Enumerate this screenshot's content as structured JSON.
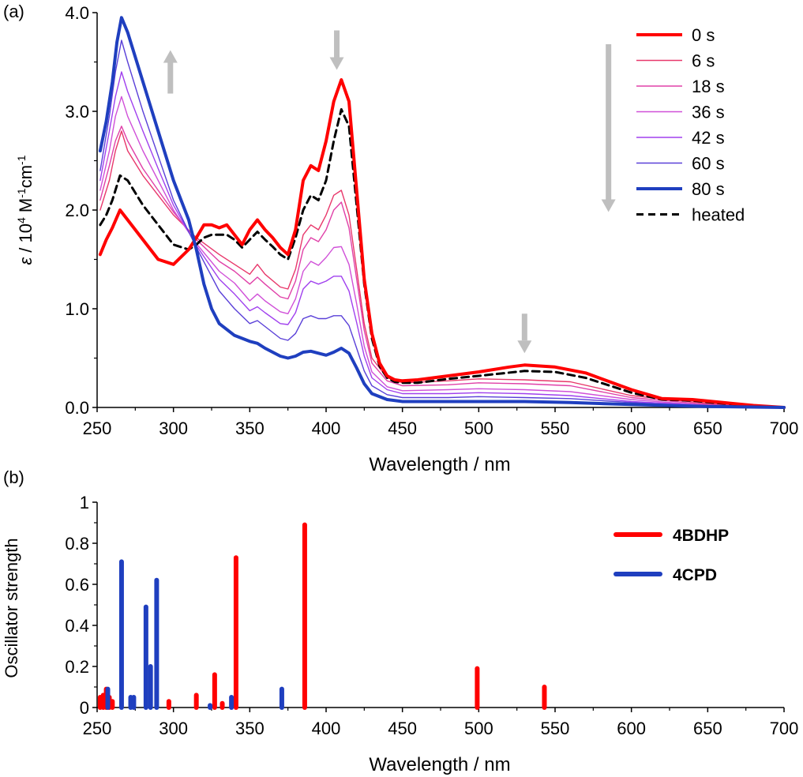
{
  "chart_data": [
    {
      "panel_label": "(a)",
      "type": "line",
      "xlabel": "Wavelength / nm",
      "ylabel": {
        "epsilon": "ε",
        "main": " / 10",
        "sup1": "4",
        "mid": " M",
        "sup2": "-1",
        "tail": "cm",
        "sup3": "-1"
      },
      "xlim": [
        250,
        700
      ],
      "ylim": [
        0,
        4.0
      ],
      "xticks": [
        "250",
        "300",
        "350",
        "400",
        "450",
        "500",
        "550",
        "600",
        "650",
        "700"
      ],
      "yticks": [
        "0.0",
        "1.0",
        "2.0",
        "3.0",
        "4.0"
      ],
      "legend_position": "top-right",
      "colors": {
        "0 s": "#ff0000",
        "6 s": "#e8386b",
        "18 s": "#e040a8",
        "36 s": "#d050d8",
        "42 s": "#a040ee",
        "60 s": "#5a40d8",
        "80 s": "#1f3fbf",
        "heated": "#000000",
        "arrow": "#bfbfbf"
      },
      "series": [
        {
          "name": "0 s",
          "style": "solid",
          "width": 4,
          "x": [
            252,
            256,
            260,
            265,
            270,
            280,
            290,
            300,
            310,
            315,
            320,
            325,
            330,
            335,
            340,
            345,
            350,
            355,
            360,
            365,
            370,
            375,
            380,
            385,
            390,
            395,
            400,
            405,
            410,
            415,
            420,
            425,
            430,
            435,
            440,
            445,
            450,
            460,
            480,
            500,
            520,
            530,
            550,
            570,
            600,
            620,
            640,
            660,
            680,
            700
          ],
          "y": [
            1.55,
            1.7,
            1.82,
            2.0,
            1.9,
            1.7,
            1.5,
            1.45,
            1.6,
            1.72,
            1.85,
            1.85,
            1.82,
            1.85,
            1.75,
            1.65,
            1.8,
            1.9,
            1.8,
            1.72,
            1.62,
            1.55,
            1.8,
            2.3,
            2.45,
            2.4,
            2.7,
            3.1,
            3.32,
            3.1,
            2.2,
            1.3,
            0.75,
            0.45,
            0.32,
            0.28,
            0.27,
            0.28,
            0.32,
            0.36,
            0.41,
            0.43,
            0.41,
            0.35,
            0.18,
            0.09,
            0.08,
            0.05,
            0.02,
            0.0
          ]
        },
        {
          "name": "6 s",
          "style": "solid",
          "width": 1.4,
          "x": [
            252,
            258,
            262,
            266,
            270,
            280,
            290,
            300,
            315,
            330,
            340,
            350,
            355,
            360,
            370,
            375,
            380,
            385,
            390,
            395,
            400,
            405,
            410,
            415,
            420,
            425,
            430,
            440,
            450,
            480,
            500,
            530,
            560,
            600,
            650,
            700
          ],
          "y": [
            2.0,
            2.3,
            2.6,
            2.8,
            2.6,
            2.35,
            2.15,
            1.95,
            1.72,
            1.55,
            1.45,
            1.35,
            1.45,
            1.35,
            1.22,
            1.2,
            1.4,
            1.75,
            1.85,
            1.8,
            1.95,
            2.15,
            2.2,
            1.95,
            1.4,
            0.85,
            0.5,
            0.3,
            0.25,
            0.27,
            0.29,
            0.28,
            0.26,
            0.12,
            0.04,
            0.0
          ]
        },
        {
          "name": "18 s",
          "style": "solid",
          "width": 1.4,
          "x": [
            252,
            258,
            262,
            266,
            270,
            280,
            290,
            300,
            315,
            330,
            340,
            350,
            355,
            360,
            370,
            375,
            380,
            385,
            390,
            395,
            400,
            405,
            410,
            415,
            420,
            425,
            430,
            440,
            450,
            480,
            500,
            530,
            560,
            600,
            650,
            700
          ],
          "y": [
            2.1,
            2.45,
            2.7,
            2.85,
            2.7,
            2.42,
            2.2,
            1.98,
            1.7,
            1.48,
            1.38,
            1.25,
            1.32,
            1.25,
            1.12,
            1.1,
            1.28,
            1.6,
            1.72,
            1.68,
            1.8,
            2.0,
            2.08,
            1.82,
            1.3,
            0.78,
            0.45,
            0.27,
            0.22,
            0.23,
            0.25,
            0.24,
            0.22,
            0.1,
            0.03,
            0.0
          ]
        },
        {
          "name": "36 s",
          "style": "solid",
          "width": 1.4,
          "x": [
            252,
            258,
            262,
            266,
            270,
            280,
            290,
            300,
            315,
            330,
            340,
            350,
            355,
            360,
            370,
            375,
            380,
            385,
            390,
            395,
            400,
            405,
            410,
            415,
            420,
            425,
            430,
            440,
            450,
            480,
            500,
            530,
            560,
            600,
            650,
            700
          ],
          "y": [
            2.2,
            2.6,
            2.95,
            3.15,
            2.95,
            2.6,
            2.3,
            2.0,
            1.66,
            1.38,
            1.26,
            1.08,
            1.15,
            1.08,
            0.97,
            0.95,
            1.1,
            1.38,
            1.48,
            1.44,
            1.52,
            1.62,
            1.63,
            1.45,
            1.05,
            0.62,
            0.36,
            0.21,
            0.17,
            0.18,
            0.19,
            0.18,
            0.16,
            0.08,
            0.02,
            0.0
          ]
        },
        {
          "name": "42 s",
          "style": "solid",
          "width": 1.4,
          "x": [
            252,
            258,
            262,
            266,
            270,
            280,
            290,
            300,
            315,
            330,
            340,
            350,
            355,
            360,
            370,
            375,
            380,
            385,
            390,
            395,
            400,
            405,
            410,
            415,
            420,
            425,
            430,
            440,
            450,
            480,
            500,
            530,
            560,
            600,
            650,
            700
          ],
          "y": [
            2.3,
            2.8,
            3.15,
            3.4,
            3.2,
            2.8,
            2.42,
            2.05,
            1.64,
            1.3,
            1.15,
            0.98,
            1.02,
            0.96,
            0.85,
            0.84,
            0.96,
            1.2,
            1.28,
            1.25,
            1.28,
            1.33,
            1.33,
            1.18,
            0.86,
            0.52,
            0.3,
            0.18,
            0.14,
            0.14,
            0.15,
            0.14,
            0.12,
            0.06,
            0.02,
            0.0
          ]
        },
        {
          "name": "60 s",
          "style": "solid",
          "width": 1.4,
          "x": [
            252,
            258,
            262,
            266,
            270,
            280,
            290,
            300,
            315,
            330,
            340,
            350,
            355,
            360,
            370,
            375,
            380,
            385,
            390,
            395,
            400,
            405,
            410,
            415,
            420,
            425,
            430,
            440,
            450,
            480,
            500,
            530,
            560,
            600,
            650,
            700
          ],
          "y": [
            2.4,
            2.95,
            3.4,
            3.72,
            3.5,
            3.0,
            2.55,
            2.1,
            1.62,
            1.18,
            1.0,
            0.85,
            0.88,
            0.82,
            0.7,
            0.68,
            0.75,
            0.9,
            0.93,
            0.9,
            0.9,
            0.93,
            0.93,
            0.83,
            0.6,
            0.37,
            0.22,
            0.13,
            0.1,
            0.1,
            0.11,
            0.1,
            0.09,
            0.05,
            0.01,
            0.0
          ]
        },
        {
          "name": "80 s",
          "style": "solid",
          "width": 4,
          "x": [
            252,
            256,
            260,
            263,
            266,
            270,
            280,
            290,
            300,
            310,
            315,
            320,
            325,
            330,
            340,
            350,
            355,
            360,
            370,
            375,
            380,
            385,
            390,
            395,
            400,
            405,
            410,
            415,
            420,
            425,
            430,
            440,
            450,
            480,
            500,
            530,
            560,
            600,
            650,
            700
          ],
          "y": [
            2.6,
            2.9,
            3.3,
            3.7,
            3.95,
            3.8,
            3.3,
            2.8,
            2.3,
            1.9,
            1.6,
            1.25,
            1.0,
            0.85,
            0.73,
            0.67,
            0.65,
            0.6,
            0.52,
            0.5,
            0.52,
            0.56,
            0.57,
            0.55,
            0.53,
            0.56,
            0.6,
            0.55,
            0.4,
            0.24,
            0.14,
            0.08,
            0.06,
            0.06,
            0.06,
            0.06,
            0.05,
            0.03,
            0.01,
            0.0
          ]
        },
        {
          "name": "heated",
          "style": "dashed",
          "width": 3,
          "x": [
            252,
            256,
            260,
            265,
            270,
            280,
            290,
            300,
            310,
            315,
            320,
            325,
            330,
            335,
            340,
            345,
            350,
            355,
            360,
            365,
            370,
            375,
            380,
            385,
            390,
            395,
            400,
            405,
            410,
            415,
            420,
            425,
            430,
            435,
            440,
            445,
            450,
            460,
            480,
            500,
            530,
            550,
            570,
            600,
            620,
            640,
            660,
            680,
            700
          ],
          "y": [
            1.85,
            1.95,
            2.1,
            2.35,
            2.3,
            2.05,
            1.85,
            1.65,
            1.6,
            1.65,
            1.72,
            1.75,
            1.75,
            1.75,
            1.7,
            1.62,
            1.7,
            1.78,
            1.7,
            1.63,
            1.55,
            1.5,
            1.72,
            2.0,
            2.15,
            2.1,
            2.3,
            2.7,
            3.02,
            2.85,
            2.05,
            1.25,
            0.7,
            0.42,
            0.3,
            0.26,
            0.25,
            0.25,
            0.29,
            0.32,
            0.37,
            0.36,
            0.3,
            0.15,
            0.08,
            0.07,
            0.04,
            0.02,
            0.0
          ]
        }
      ],
      "arrows": [
        {
          "direction": "up",
          "x": 298,
          "y_from": 3.18,
          "y_to": 3.62
        },
        {
          "direction": "down",
          "x": 407,
          "y_from": 3.82,
          "y_to": 3.42
        },
        {
          "direction": "down",
          "x": 530,
          "y_from": 0.95,
          "y_to": 0.55
        },
        {
          "direction": "down",
          "x": 585,
          "y_from": 3.68,
          "y_to": 1.98
        }
      ]
    },
    {
      "panel_label": "(b)",
      "type": "bar",
      "xlabel": "Wavelength / nm",
      "ylabel": "Oscillator strength",
      "xlim": [
        250,
        700
      ],
      "ylim": [
        0,
        1
      ],
      "xticks": [
        "250",
        "300",
        "350",
        "400",
        "450",
        "500",
        "550",
        "600",
        "650",
        "700"
      ],
      "yticks": [
        "0",
        "0.2",
        "0.4",
        "0.6",
        "0.8",
        "1"
      ],
      "legend_position": "top-right",
      "colors": {
        "4BDHP": "#ff0000",
        "4CPD": "#1f3fbf"
      },
      "series": [
        {
          "name": "4BDHP",
          "x": [
            252,
            254,
            256,
            258,
            260,
            297,
            315,
            327,
            332,
            341,
            386,
            499,
            543
          ],
          "y": [
            0.05,
            0.06,
            0.09,
            0.05,
            0.03,
            0.03,
            0.06,
            0.16,
            0.02,
            0.73,
            0.89,
            0.19,
            0.1
          ]
        },
        {
          "name": "4CPD",
          "x": [
            257,
            266,
            272,
            274,
            282,
            285,
            289,
            324,
            338,
            371
          ],
          "y": [
            0.09,
            0.71,
            0.05,
            0.05,
            0.49,
            0.2,
            0.62,
            0.01,
            0.05,
            0.09
          ]
        }
      ]
    }
  ]
}
